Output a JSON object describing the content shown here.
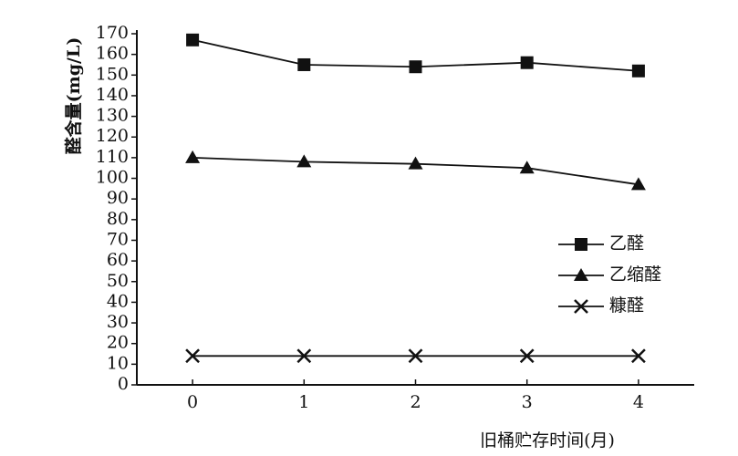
{
  "chart_data": {
    "type": "line",
    "y_label": "醛含量(mg/L)",
    "x_label": "旧桶贮存时间(月)",
    "x": [
      0,
      1,
      2,
      3,
      4
    ],
    "xlim": [
      -0.5,
      4.5
    ],
    "xticks": [
      0,
      1,
      2,
      3,
      4
    ],
    "ylim": [
      0,
      170
    ],
    "yticks": [
      0,
      10,
      20,
      30,
      40,
      50,
      60,
      70,
      80,
      90,
      100,
      110,
      120,
      130,
      140,
      150,
      160,
      170
    ],
    "legend": "right",
    "series": [
      {
        "name": "乙醛",
        "color": "#111111",
        "marker": "square",
        "values": [
          167,
          155,
          154,
          156,
          152
        ]
      },
      {
        "name": "乙缩醛",
        "color": "#111111",
        "marker": "triangle",
        "values": [
          110,
          108,
          107,
          105,
          97
        ]
      },
      {
        "name": "糠醛",
        "color": "#111111",
        "marker": "x",
        "values": [
          14,
          14,
          14,
          14,
          14
        ]
      }
    ]
  }
}
